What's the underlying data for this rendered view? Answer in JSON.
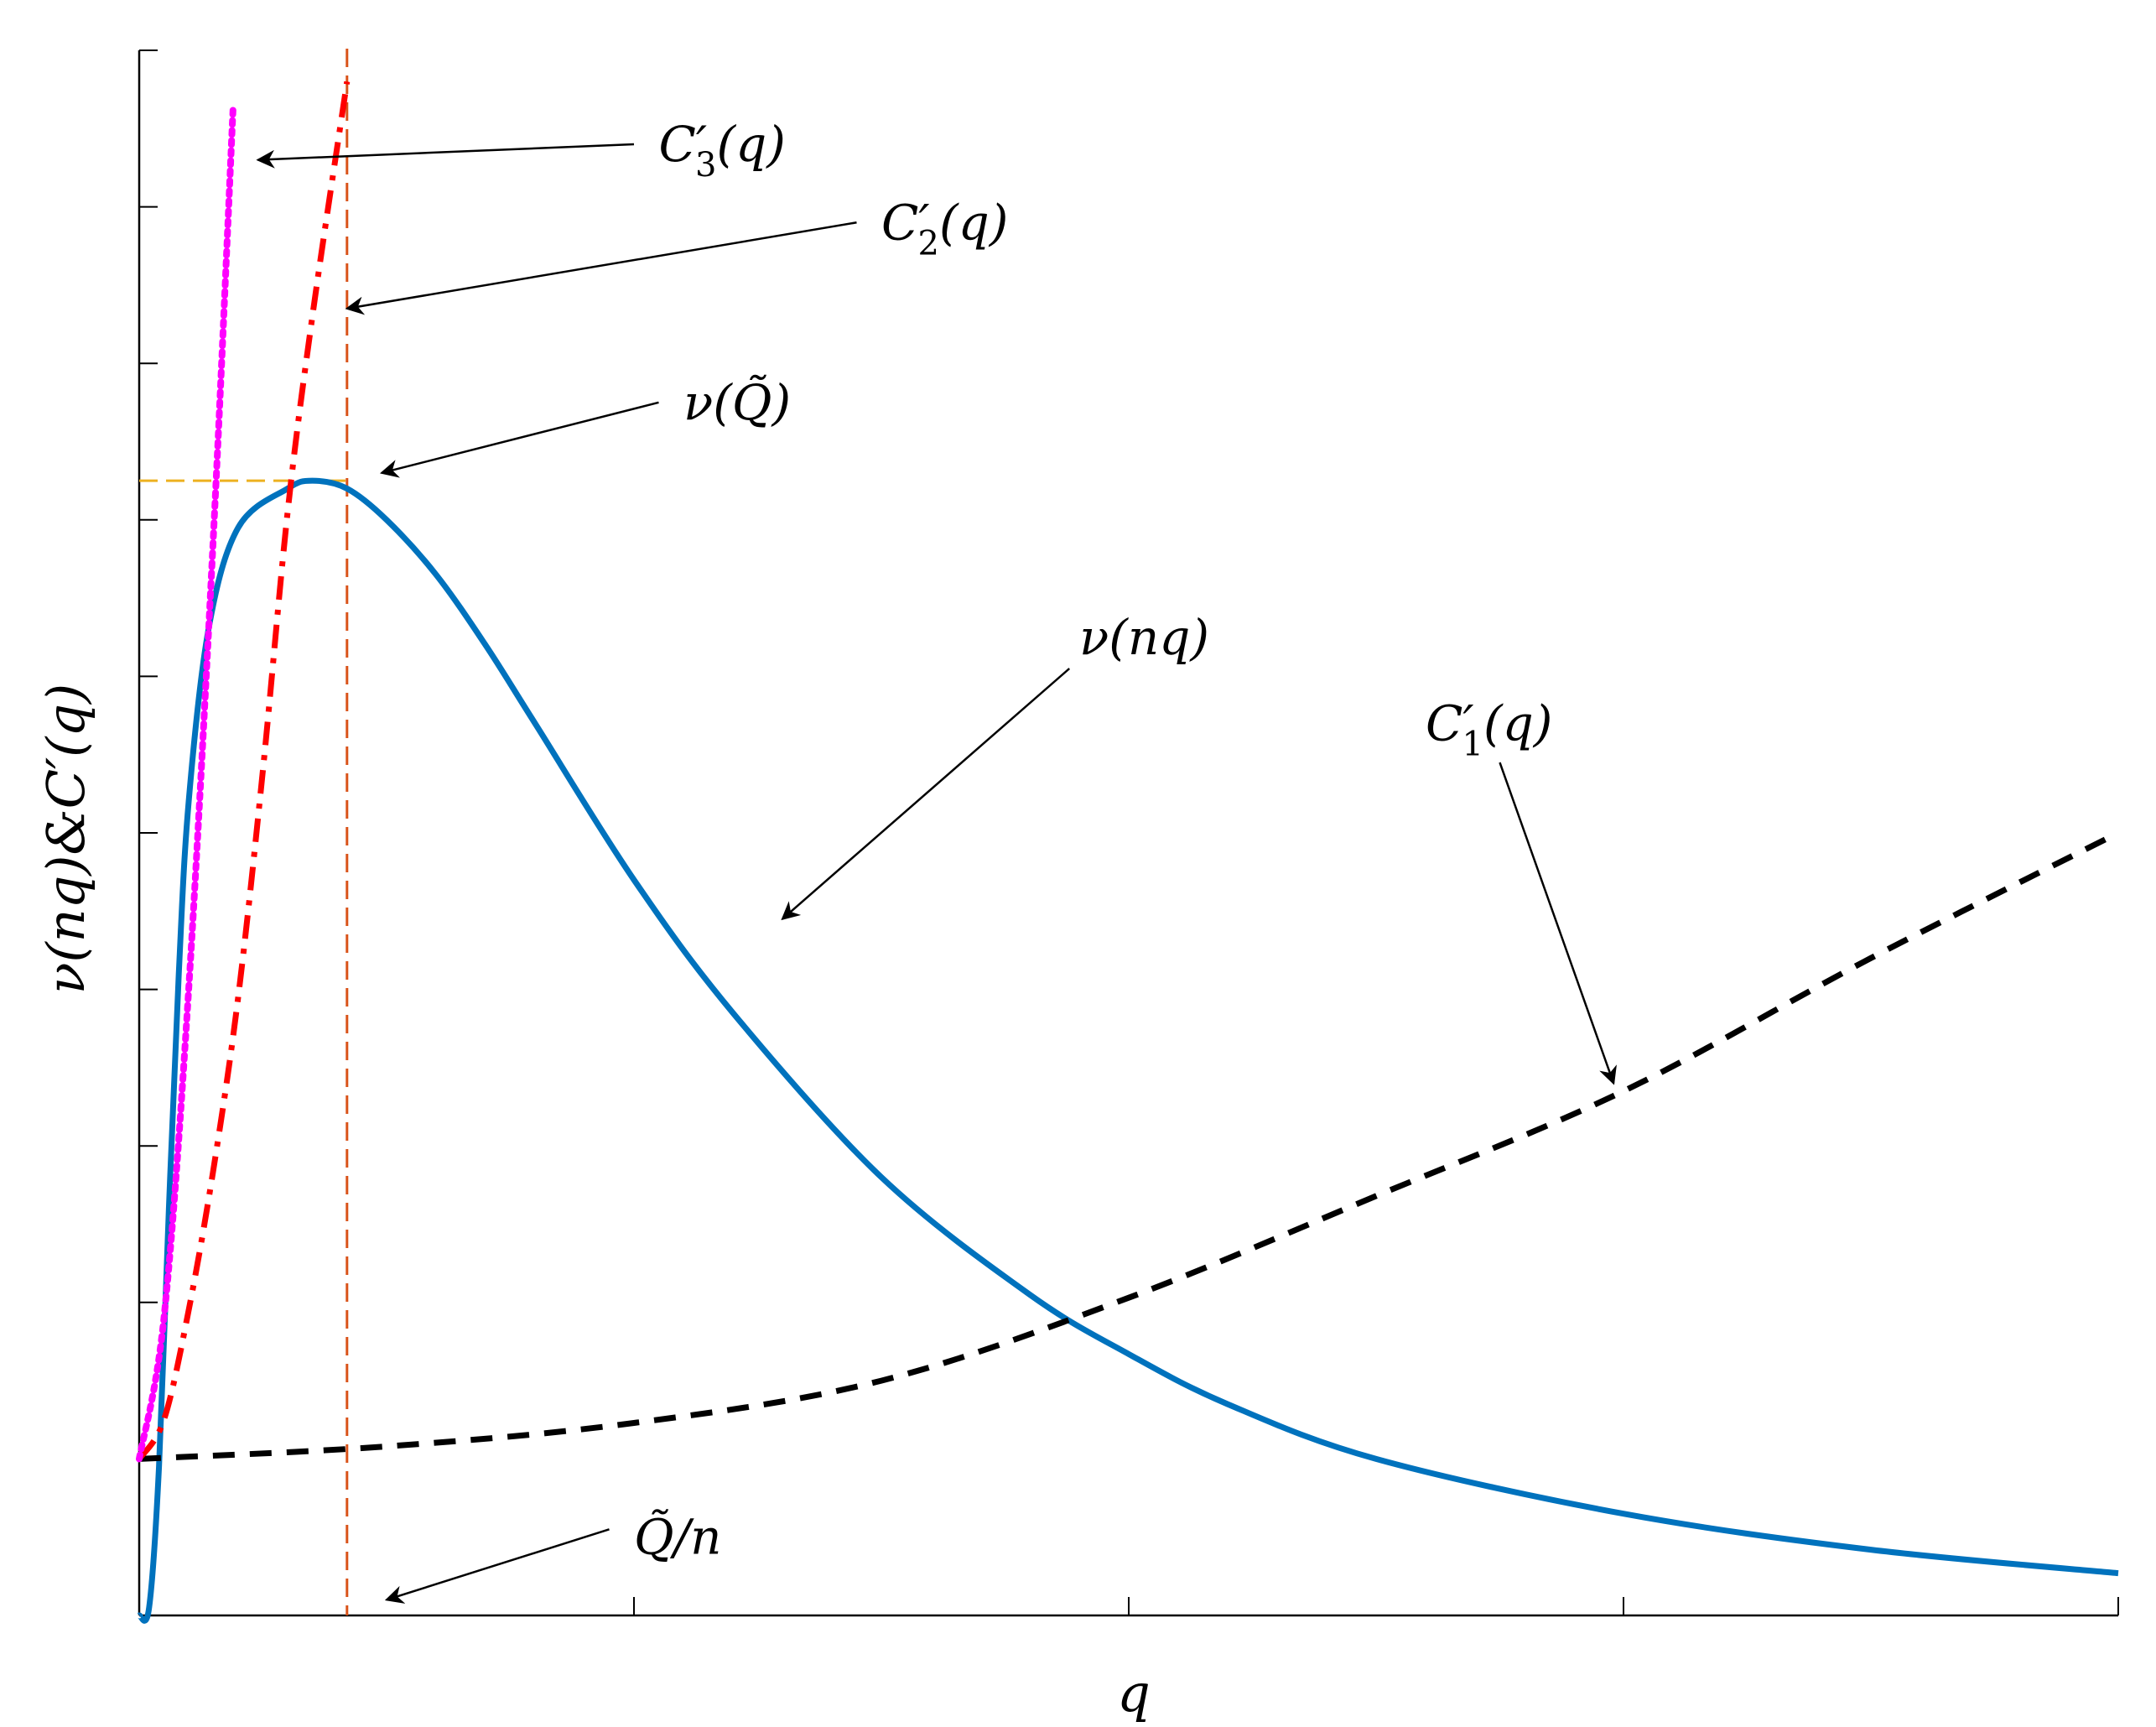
{
  "chart_data": {
    "type": "line",
    "xlabel": "q",
    "ylabel": "ν(nq)&C′(q)",
    "xlim": [
      0,
      4
    ],
    "ylim": [
      0,
      10
    ],
    "grid": false,
    "x_ticks": [
      0,
      1,
      2,
      3,
      4
    ],
    "y_ticks": [
      0,
      1,
      2,
      3,
      4,
      5,
      6,
      7,
      8,
      9,
      10
    ],
    "tick_labels_shown": false,
    "colors": {
      "nu": "#0072BD",
      "c1": "#000000",
      "c2": "#FF0000",
      "c3": "#FF00FF",
      "q_tilde_line": "#D95319",
      "nu_max_line": "#EDB120"
    },
    "series": [
      {
        "key": "nu",
        "style": "solid",
        "x": [
          0,
          0.02,
          0.04,
          0.06,
          0.08,
          0.1,
          0.14,
          0.2,
          0.3,
          0.35,
          0.42,
          0.5,
          0.6,
          0.7,
          0.8,
          1.0,
          1.2,
          1.5,
          1.8,
          2.0,
          2.2,
          2.5,
          3.0,
          3.5,
          4.0
        ],
        "y": [
          0,
          0.05,
          0.95,
          2.6,
          4.1,
          5.2,
          6.3,
          6.95,
          7.2,
          7.25,
          7.2,
          7.0,
          6.65,
          6.2,
          5.7,
          4.7,
          3.85,
          2.8,
          2.05,
          1.67,
          1.35,
          1.0,
          0.65,
          0.42,
          0.27
        ]
      },
      {
        "key": "c1",
        "style": "dashed",
        "x": [
          0,
          0.5,
          1.0,
          1.5,
          2.0,
          2.5,
          3.0,
          3.5,
          4.0
        ],
        "y": [
          1.0,
          1.08,
          1.23,
          1.5,
          2.03,
          2.68,
          3.35,
          4.2,
          5.0
        ]
      },
      {
        "key": "c2",
        "style": "dash-dot",
        "x": [
          0,
          0.05,
          0.1,
          0.15,
          0.2,
          0.25,
          0.3,
          0.35,
          0.42
        ],
        "y": [
          1.0,
          1.25,
          1.95,
          2.85,
          3.95,
          5.4,
          7.05,
          8.3,
          9.8
        ]
      },
      {
        "key": "c3",
        "style": "dotted",
        "x": [
          0,
          0.05,
          0.1,
          0.15,
          0.19
        ],
        "y": [
          1.0,
          1.9,
          4.0,
          6.9,
          9.65
        ]
      }
    ],
    "reference_lines": {
      "q_tilde_over_n": 0.42,
      "nu_max": 7.25
    },
    "annotations": [
      {
        "key": "c3",
        "tex": "C′3(q)",
        "base": "C",
        "prime": "′",
        "sub": "3",
        "tail": "(q)",
        "text_at": [
          1.05,
          9.4
        ],
        "arrow_to": [
          0.24,
          9.3
        ],
        "tail_at": [
          1.0,
          9.4
        ]
      },
      {
        "key": "c2",
        "tex": "C′2(q)",
        "base": "C",
        "prime": "′",
        "sub": "2",
        "tail": "(q)",
        "text_at": [
          1.5,
          8.9
        ],
        "arrow_to": [
          0.42,
          8.35
        ],
        "tail_at": [
          1.45,
          8.9
        ]
      },
      {
        "key": "nu_q",
        "tex": "ν(Q̃)",
        "base": "ν(",
        "prime": "",
        "sub": "",
        "tail": "Q̃)",
        "text_at": [
          1.1,
          7.75
        ],
        "arrow_to": [
          0.49,
          7.3
        ],
        "tail_at": [
          1.05,
          7.75
        ]
      },
      {
        "key": "nu",
        "tex": "ν(nq)",
        "base": "ν(nq)",
        "prime": "",
        "sub": "",
        "tail": "",
        "text_at": [
          1.9,
          6.25
        ],
        "arrow_to": [
          1.3,
          4.45
        ],
        "tail_at": [
          1.88,
          6.05
        ]
      },
      {
        "key": "c1",
        "tex": "C′1(q)",
        "base": "C",
        "prime": "′",
        "sub": "1",
        "tail": "(q)",
        "text_at": [
          2.6,
          5.7
        ],
        "arrow_to": [
          2.98,
          3.4
        ],
        "tail_at": [
          2.75,
          5.45
        ]
      },
      {
        "key": "q_tilde",
        "tex": "Q̃/n",
        "base": "Q̃/n",
        "prime": "",
        "sub": "",
        "tail": "",
        "text_at": [
          1.0,
          0.5
        ],
        "arrow_to": [
          0.5,
          0.1
        ],
        "tail_at": [
          0.95,
          0.55
        ]
      }
    ]
  }
}
